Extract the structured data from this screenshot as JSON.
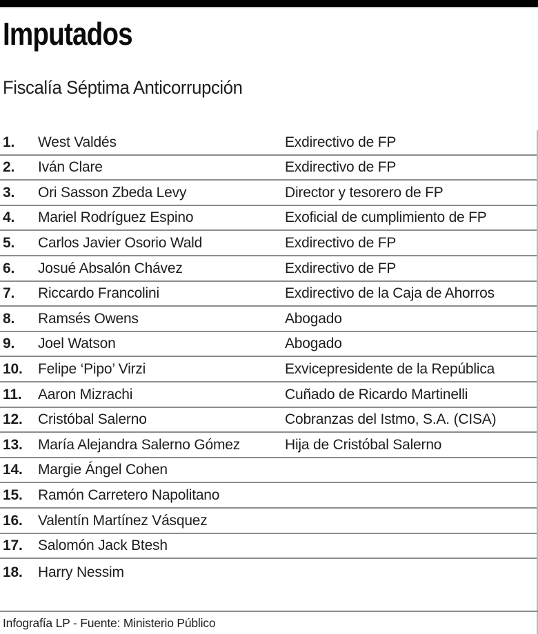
{
  "colors": {
    "background": "#ffffff",
    "topbar": "#000000",
    "text": "#1d1d1b",
    "divider": "#8c8c8c",
    "edge": "#b8b8b8"
  },
  "header": {
    "title": "Imputados",
    "subtitle": "Fiscalía Séptima Anticorrupción"
  },
  "list": {
    "rows": [
      {
        "num": "1.",
        "name": "West Valdés",
        "role": "Exdirectivo de FP"
      },
      {
        "num": "2.",
        "name": "Iván Clare",
        "role": "Exdirectivo de FP"
      },
      {
        "num": "3.",
        "name": "Ori Sasson Zbeda Levy",
        "role": "Director y tesorero de FP"
      },
      {
        "num": "4.",
        "name": "Mariel Rodríguez Espino",
        "role": "Exoficial de cumplimiento de FP"
      },
      {
        "num": "5.",
        "name": "Carlos Javier Osorio Wald",
        "role": "Exdirectivo de FP"
      },
      {
        "num": "6.",
        "name": "Josué Absalón Chávez",
        "role": "Exdirectivo de FP"
      },
      {
        "num": "7.",
        "name": "Riccardo Francolini",
        "role": "Exdirectivo de la Caja de Ahorros"
      },
      {
        "num": "8.",
        "name": "Ramsés Owens",
        "role": "Abogado"
      },
      {
        "num": "9.",
        "name": "Joel Watson",
        "role": "Abogado"
      },
      {
        "num": "10.",
        "name": "Felipe ‘Pipo’ Virzi",
        "role": "Exvicepresidente de la República"
      },
      {
        "num": "11.",
        "name": "Aaron Mizrachi",
        "role": "Cuñado de Ricardo Martinelli"
      },
      {
        "num": "12.",
        "name": "Cristóbal Salerno",
        "role": "Cobranzas del Istmo, S.A. (CISA)"
      },
      {
        "num": "13.",
        "name": "María Alejandra Salerno Gómez",
        "role": "Hija de Cristóbal Salerno"
      },
      {
        "num": "14.",
        "name": "Margie Ángel Cohen",
        "role": ""
      },
      {
        "num": "15.",
        "name": "Ramón Carretero Napolitano",
        "role": ""
      },
      {
        "num": "16.",
        "name": "Valentín Martínez Vásquez",
        "role": ""
      },
      {
        "num": "17.",
        "name": "Salomón Jack Btesh",
        "role": ""
      },
      {
        "num": "18.",
        "name": "Harry Nessim",
        "role": ""
      }
    ]
  },
  "footer": {
    "credit": "Infografía LP - Fuente: Ministerio Público"
  }
}
